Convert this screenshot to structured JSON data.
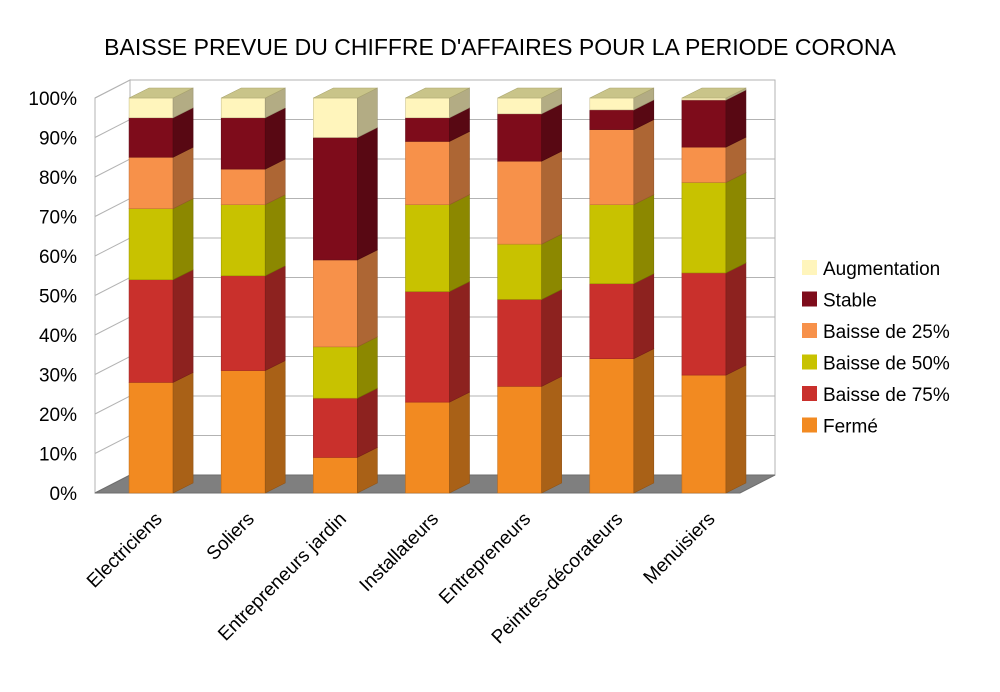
{
  "chart_data": {
    "type": "bar",
    "stacked": true,
    "percent_stacked": true,
    "three_d": true,
    "title": "BAISSE PREVUE DU CHIFFRE D'AFFAIRES POUR LA PERIODE CORONA",
    "xlabel": "",
    "ylabel": "",
    "ylim": [
      0,
      100
    ],
    "yticks": [
      "0%",
      "10%",
      "20%",
      "30%",
      "40%",
      "50%",
      "60%",
      "70%",
      "80%",
      "90%",
      "100%"
    ],
    "grid": true,
    "legend_position": "right",
    "categories": [
      "Electriciens",
      "Soliers",
      "Entrepreneurs jardin",
      "Installateurs",
      "Entrepreneurs",
      "Peintres-décorateurs",
      "Menuisiers"
    ],
    "series": [
      {
        "name": "Fermé",
        "color": "#f28a21",
        "values": [
          28,
          31,
          9,
          23,
          27,
          34,
          30
        ]
      },
      {
        "name": "Baisse de 75%",
        "color": "#c9302c",
        "values": [
          26,
          24,
          15,
          28,
          22,
          19,
          26
        ]
      },
      {
        "name": "Baisse de 50%",
        "color": "#c8c200",
        "values": [
          18,
          18,
          13,
          22,
          14,
          20,
          23
        ]
      },
      {
        "name": "Baisse de 25%",
        "color": "#f7914a",
        "values": [
          13,
          9,
          22,
          16,
          21,
          19,
          9
        ]
      },
      {
        "name": "Stable",
        "color": "#7e0c1b",
        "values": [
          10,
          13,
          31,
          6,
          12,
          5,
          12
        ]
      },
      {
        "name": "Augmentation",
        "color": "#fff5bc",
        "values": [
          5,
          5,
          10,
          5,
          4,
          3,
          0.5
        ]
      }
    ]
  }
}
